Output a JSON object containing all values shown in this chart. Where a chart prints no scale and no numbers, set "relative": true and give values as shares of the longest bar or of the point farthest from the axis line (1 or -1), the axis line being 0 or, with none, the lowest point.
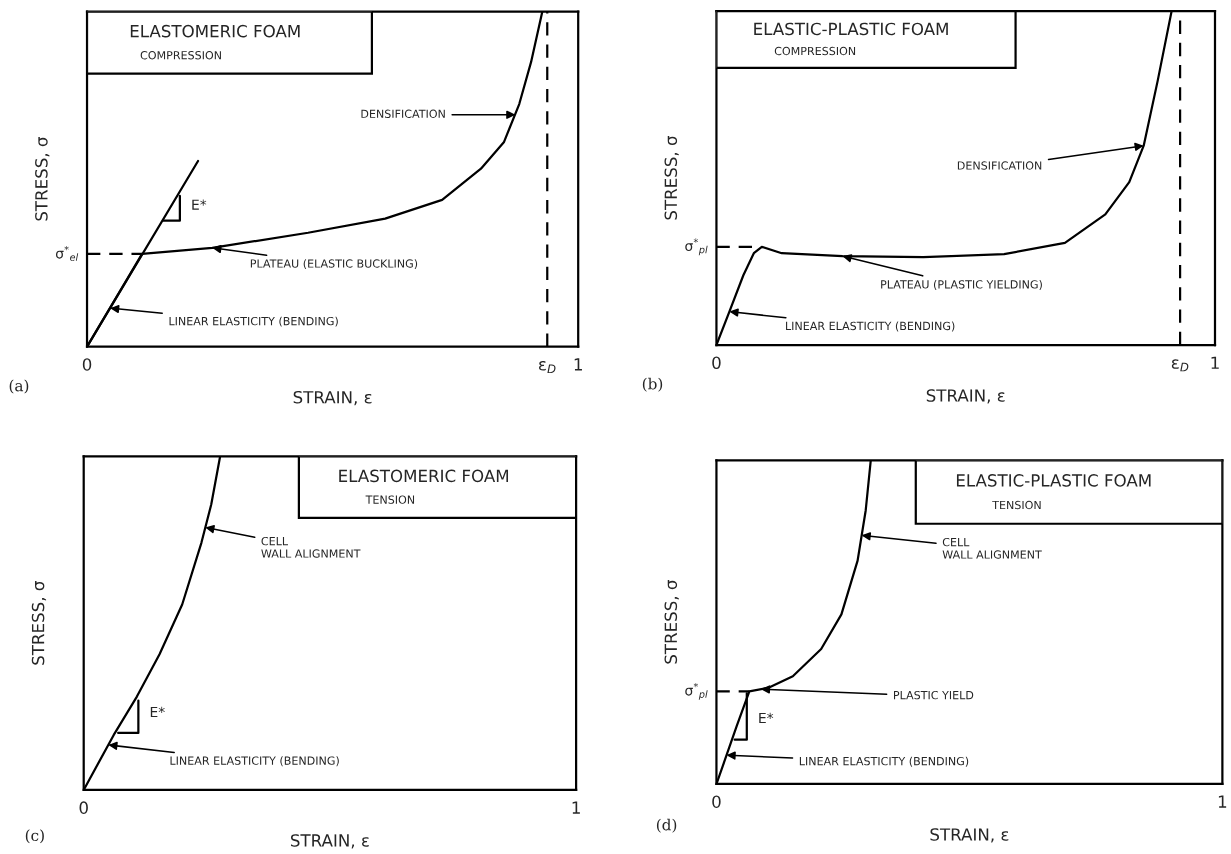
{
  "chart_data": [
    {
      "type": "line",
      "title": "ELASTOMERIC FOAM",
      "subtitle": "COMPRESSION",
      "xlabel": "STRAIN, ε",
      "ylabel": "STRESS, σ",
      "relative": true,
      "xlim": [
        0,
        1
      ],
      "xticks": [
        0,
        {
          "value": 0.937,
          "label": "ε$_{D}$"
        },
        1
      ],
      "grid": false,
      "legend": false,
      "marker": "none",
      "ref_lines": [
        {
          "axis": "x",
          "value": 0.937,
          "line_style": "dashed",
          "color": "#000000"
        }
      ],
      "series": [
        {
          "color": "#000000",
          "line_style": "solid",
          "x": [
            0,
            0.112,
            0.255,
            0.45,
            0.607,
            0.723,
            0.802,
            0.849,
            0.88,
            0.904,
            0.927
          ],
          "values": [
            0,
            0.277,
            0.295,
            0.34,
            0.382,
            0.438,
            0.531,
            0.611,
            0.724,
            0.849,
            1
          ]
        },
        {
          "color": "#000000",
          "line_style": "solid",
          "x": [
            0,
            0.226
          ],
          "values": [
            0,
            0.554
          ]
        },
        {
          "color": "#000000",
          "line_style": "dashed",
          "x": [
            0,
            0.112
          ],
          "values": [
            0.277,
            0.277
          ]
        },
        {
          "color": "#000000",
          "line_style": "solid",
          "x": [
            0.155,
            0.189,
            0.189
          ],
          "values": [
            0.376,
            0.376,
            0.45
          ]
        }
      ],
      "annotations": [
        {
          "text": "DENSIFICATION",
          "x": 0.872,
          "y": 0.692
        },
        {
          "text": "PLATEAU (ELASTIC BUCKLING)",
          "x": 0.255,
          "y": 0.295
        },
        {
          "text": "LINEAR ELASTICITY (BENDING)",
          "x": 0.047,
          "y": 0.115
        },
        {
          "text": "E*",
          "x": 0.189,
          "y": 0.42
        },
        {
          "text": "σ$^{*}$$_{el}$",
          "x": 0,
          "y": 0.277
        },
        "(a)"
      ]
    },
    {
      "type": "line",
      "title": "ELASTIC-PLASTIC FOAM",
      "subtitle": "COMPRESSION",
      "xlabel": "STRAIN, ε",
      "ylabel": "STRESS, σ",
      "relative": true,
      "xlim": [
        0,
        1
      ],
      "xticks": [
        0,
        {
          "value": 0.93,
          "label": "ε$_{D}$"
        },
        1
      ],
      "grid": false,
      "legend": false,
      "marker": "none",
      "ref_lines": [
        {
          "axis": "x",
          "value": 0.93,
          "line_style": "dashed",
          "color": "#000000"
        }
      ],
      "series": [
        {
          "color": "#000000",
          "line_style": "solid",
          "x": [
            0,
            0.026,
            0.054,
            0.075,
            0.091,
            0.131,
            0.253,
            0.415,
            0.577,
            0.699,
            0.78,
            0.828,
            0.857,
            0.885,
            0.913
          ],
          "values": [
            0,
            0.1,
            0.209,
            0.275,
            0.294,
            0.275,
            0.266,
            0.263,
            0.272,
            0.306,
            0.391,
            0.488,
            0.597,
            0.791,
            1
          ]
        },
        {
          "color": "#000000",
          "line_style": "dashed",
          "x": [
            0,
            0.079
          ],
          "values": [
            0.294,
            0.294
          ]
        }
      ],
      "annotations": [
        {
          "text": "DENSIFICATION",
          "x": 0.857,
          "y": 0.597
        },
        {
          "text": "PLATEAU (PLASTIC YIELDING)",
          "x": 0.253,
          "y": 0.266
        },
        {
          "text": "LINEAR ELASTICITY (BENDING)",
          "x": 0.026,
          "y": 0.1
        },
        {
          "text": "σ$^{*}$$_{pl}$",
          "x": 0,
          "y": 0.294
        },
        "(b)"
      ]
    },
    {
      "type": "line",
      "title": "ELASTOMERIC FOAM",
      "subtitle": "TENSION",
      "xlabel": "STRAIN, ε",
      "ylabel": "STRESS, σ",
      "relative": true,
      "xlim": [
        0,
        1
      ],
      "xticks": [
        0,
        1
      ],
      "grid": false,
      "legend": false,
      "marker": "none",
      "series": [
        {
          "color": "#000000",
          "line_style": "solid",
          "x": [
            0,
            0.061,
            0.108,
            0.154,
            0.2,
            0.239,
            0.259,
            0.277
          ],
          "values": [
            0,
            0.165,
            0.28,
            0.407,
            0.556,
            0.741,
            0.856,
            1
          ]
        },
        {
          "color": "#000000",
          "line_style": "solid",
          "x": [
            0.07,
            0.111,
            0.111
          ],
          "values": [
            0.171,
            0.171,
            0.268
          ]
        }
      ],
      "annotations": [
        {
          "text": "CELL\nWALL ALIGNMENT",
          "x": 0.247,
          "y": 0.787
        },
        {
          "text": "LINEAR ELASTICITY (BENDING)",
          "x": 0.05,
          "y": 0.135
        },
        {
          "text": "E*",
          "x": 0.111,
          "y": 0.23
        },
        "(c)"
      ]
    },
    {
      "type": "line",
      "title": "ELASTIC-PLASTIC FOAM",
      "subtitle": "TENSION",
      "xlabel": "STRAIN, ε",
      "ylabel": "STRESS, σ",
      "relative": true,
      "xlim": [
        0,
        1
      ],
      "xticks": [
        0,
        1
      ],
      "grid": false,
      "legend": false,
      "marker": "none",
      "series": [
        {
          "color": "#000000",
          "line_style": "solid",
          "x": [
            0,
            0.016,
            0.04,
            0.065,
            0.104,
            0.151,
            0.207,
            0.247,
            0.279,
            0.295,
            0.305
          ],
          "values": [
            0,
            0.071,
            0.179,
            0.286,
            0.298,
            0.333,
            0.417,
            0.524,
            0.69,
            0.845,
            1
          ]
        },
        {
          "color": "#000000",
          "line_style": "dashed",
          "x": [
            0,
            0.065
          ],
          "values": [
            0.286,
            0.286
          ]
        },
        {
          "color": "#000000",
          "line_style": "solid",
          "x": [
            0.036,
            0.06,
            0.06
          ],
          "values": [
            0.137,
            0.137,
            0.28
          ]
        }
      ],
      "annotations": [
        {
          "text": "CELL\nWALL ALIGNMENT",
          "x": 0.287,
          "y": 0.768
        },
        {
          "text": "PLASTIC YIELD",
          "x": 0.088,
          "y": 0.293
        },
        {
          "text": "E*",
          "x": 0.06,
          "y": 0.2
        },
        {
          "text": "LINEAR ELASTICITY (BENDING)",
          "x": 0.02,
          "y": 0.089
        },
        {
          "text": "σ$^{*}$$_{pl}$",
          "x": 0,
          "y": 0.286
        },
        "(d)"
      ]
    }
  ]
}
